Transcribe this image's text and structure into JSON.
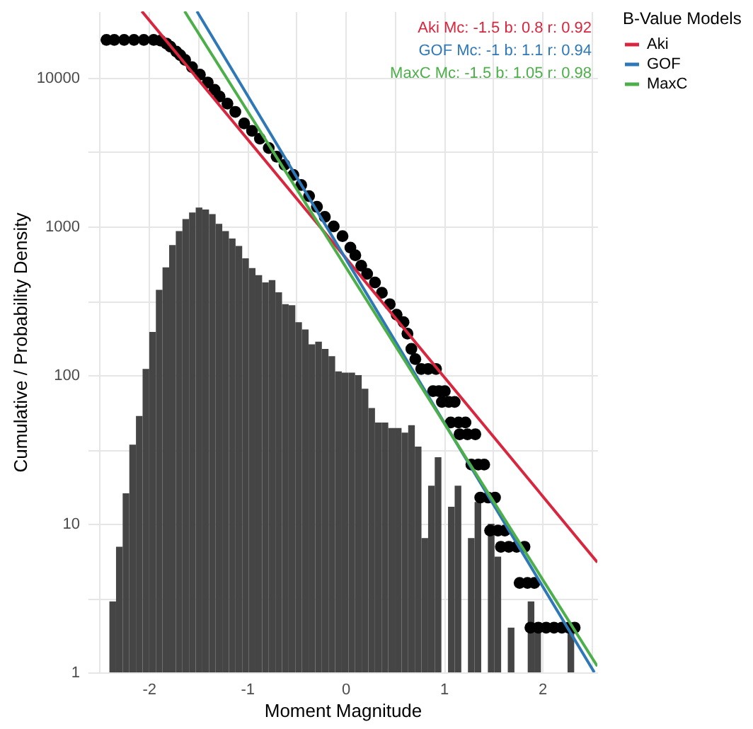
{
  "chart_data": {
    "type": "histogram",
    "xlabel": "Moment Magnitude",
    "ylabel": "Cumulative / Probability Density",
    "legend_title": "B-Value Models",
    "legend": "right",
    "grid": true,
    "log": "y",
    "xlim": [
      -2.62,
      2.56
    ],
    "xticks": [
      {
        "value": -2.5,
        "label": null
      },
      -2,
      {
        "value": -1.5,
        "label": null
      },
      -1,
      {
        "value": -0.5,
        "label": null
      },
      0,
      {
        "value": 0.5,
        "label": null
      },
      1,
      {
        "value": 1.5,
        "label": null
      },
      2,
      {
        "value": 2.5,
        "label": null
      }
    ],
    "ylim": [
      1,
      28000
    ],
    "yticks": [
      1,
      {
        "value": 3.16,
        "label": null
      },
      10,
      {
        "value": 31.6,
        "label": null
      },
      100,
      {
        "value": 316,
        "label": null
      },
      1000,
      {
        "value": 3160,
        "label": null
      },
      10000
    ],
    "annotations": [
      "Aki Mc: -1.5 b: 0.8 r: 0.92",
      "GOF Mc: -1 b: 1.1 r: 0.94",
      "MaxC Mc: -1.5 b: 1.05 r: 0.98"
    ],
    "series": [
      {
        "color": "#454545",
        "bins": [
          -2.4,
          -2.3325,
          -2.265,
          -2.1975,
          -2.13,
          -2.0625,
          -1.995,
          -1.9275,
          -1.86,
          -1.7925,
          -1.725,
          -1.6575,
          -1.59,
          -1.5225,
          -1.455,
          -1.3875,
          -1.32,
          -1.2525,
          -1.185,
          -1.1175,
          -1.05,
          -0.9825,
          -0.915,
          -0.8475,
          -0.78,
          -0.7125,
          -0.645,
          -0.5775,
          -0.51,
          -0.4425,
          -0.375,
          -0.3075,
          -0.24,
          -0.1725,
          -0.105,
          -0.0375,
          0.03,
          0.0975,
          0.165,
          0.2325,
          0.3,
          0.3675,
          0.435,
          0.5025,
          0.57,
          0.6375,
          0.705,
          0.7725,
          0.84,
          0.9075,
          0.975,
          1.0425,
          1.11,
          1.1775,
          1.245,
          1.3125,
          1.38,
          1.4475,
          1.515,
          1.5825,
          1.65,
          1.7175,
          1.785,
          1.8525,
          1.92,
          1.9875,
          2.055,
          2.1225,
          2.19,
          2.2575,
          2.325
        ],
        "values": [
          3,
          7,
          16,
          34,
          53,
          110,
          195,
          375,
          530,
          750,
          930,
          1120,
          1240,
          1340,
          1300,
          1210,
          1040,
          930,
          830,
          740,
          610,
          525,
          470,
          420,
          435,
          360,
          300,
          295,
          227,
          203,
          161,
          168,
          150,
          134,
          106,
          104,
          104,
          100,
          81,
          60,
          48,
          48,
          44,
          44,
          41,
          46,
          33,
          8,
          18,
          28,
          null,
          13,
          18,
          null,
          8,
          14,
          null,
          10,
          6,
          null,
          2,
          null,
          null,
          3,
          2,
          null,
          null,
          null,
          null,
          2
        ]
      },
      {
        "type": "scatter",
        "color": "#000000",
        "marker": "circle",
        "x": [
          -2.43,
          -2.35,
          -2.25,
          -2.15,
          -2.05,
          -1.95,
          -1.88,
          -1.82,
          -1.78,
          -1.72,
          -1.68,
          -1.63,
          -1.56,
          -1.48,
          -1.4,
          -1.33,
          -1.28,
          -1.2,
          -1.12,
          -1.03,
          -0.95,
          -0.87,
          -0.78,
          -0.7,
          -0.62,
          -0.53,
          -0.45,
          -0.37,
          -0.29,
          -0.21,
          -0.12,
          -0.03,
          0.05,
          0.1,
          0.16,
          0.22,
          0.3,
          0.37,
          0.45,
          0.52,
          0.59,
          0.63,
          0.67,
          0.71,
          0.77,
          0.84,
          0.92,
          0.89,
          0.95,
          1.01,
          0.98,
          1.05,
          1.11,
          1.07,
          1.15,
          1.22,
          1.16,
          1.24,
          1.32,
          1.28,
          1.35,
          1.41,
          1.37,
          1.45,
          1.52,
          1.47,
          1.55,
          1.62,
          1.58,
          1.66,
          1.74,
          1.82,
          1.77,
          1.85,
          1.92,
          1.88,
          1.96,
          2.04,
          2.12,
          2.2,
          2.27,
          2.33
        ],
        "values": [
          18000,
          18000,
          18000,
          18000,
          18000,
          18000,
          17800,
          17000,
          16200,
          15000,
          14200,
          13200,
          11800,
          10500,
          9300,
          8300,
          7480,
          6700,
          5900,
          4930,
          4400,
          3900,
          3370,
          2950,
          2600,
          2220,
          1900,
          1600,
          1355,
          1160,
          1000,
          860,
          720,
          640,
          545,
          480,
          420,
          358,
          300,
          255,
          227,
          190,
          150,
          128,
          110,
          110,
          110,
          78,
          78,
          78,
          66,
          66,
          66,
          48,
          48,
          48,
          40,
          40,
          40,
          25,
          25,
          25,
          15,
          15,
          15,
          9,
          9,
          9,
          7,
          7,
          7,
          7,
          4,
          4,
          4,
          2,
          2,
          2,
          2,
          2,
          2,
          2
        ]
      },
      {
        "type": "line",
        "name": "Aki",
        "color": "#d7263d",
        "x": [
          -2.07,
          2.56
        ],
        "values": [
          28000,
          5.5
        ]
      },
      {
        "type": "line",
        "name": "GOF",
        "color": "#2f78b8",
        "x": [
          -1.51,
          2.53
        ],
        "values": [
          28000,
          1
        ]
      },
      {
        "type": "line",
        "name": "MaxC",
        "color": "#4daf4a",
        "x": [
          -1.635,
          2.56
        ],
        "values": [
          28000,
          1.1
        ]
      }
    ]
  }
}
